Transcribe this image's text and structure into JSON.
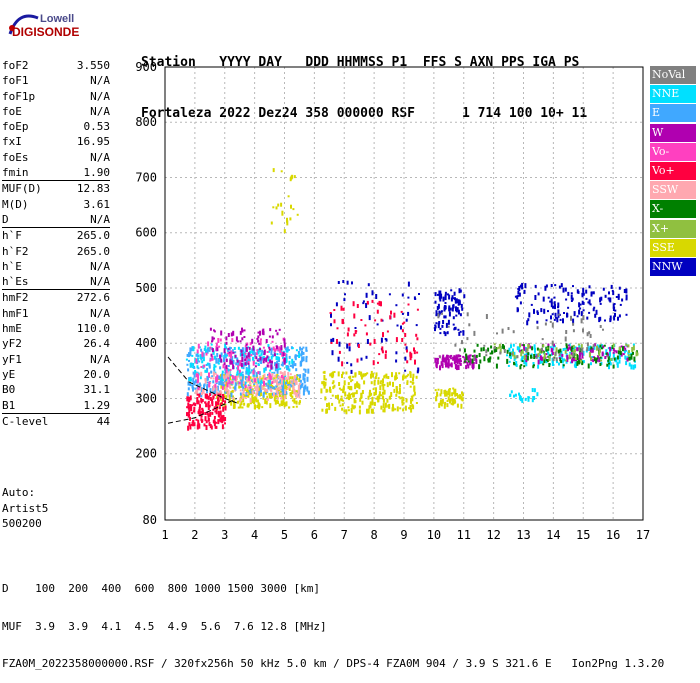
{
  "logo": {
    "line1": "Lowell",
    "line2": "DIGISONDE"
  },
  "header": {
    "labels": [
      "Station",
      "YYYY",
      "DAY",
      "DDD",
      "HHMMSS",
      "P1",
      "FFS",
      "S",
      "AXN",
      "PPS",
      "IGA",
      "PS"
    ],
    "values": [
      "Fortaleza",
      "2022",
      "Dez24",
      "358",
      "000000",
      "RSF",
      "",
      "1",
      "714",
      "100",
      "10+",
      "11"
    ]
  },
  "params": [
    {
      "name": "foF2",
      "value": "3.550"
    },
    {
      "name": "foF1",
      "value": "N/A"
    },
    {
      "name": "foF1p",
      "value": "N/A"
    },
    {
      "name": "foE",
      "value": "N/A"
    },
    {
      "name": "foEp",
      "value": "0.53"
    },
    {
      "name": "fxI",
      "value": "16.95"
    },
    {
      "name": "foEs",
      "value": "N/A"
    },
    {
      "name": "fmin",
      "value": "1.90"
    },
    {
      "name": "MUF(D)",
      "value": "12.83"
    },
    {
      "name": "M(D)",
      "value": "3.61"
    },
    {
      "name": "D",
      "value": "N/A"
    },
    {
      "name": "h`F",
      "value": "265.0"
    },
    {
      "name": "h`F2",
      "value": "265.0"
    },
    {
      "name": "h`E",
      "value": "N/A"
    },
    {
      "name": "h`Es",
      "value": "N/A"
    },
    {
      "name": "hmF2",
      "value": "272.6"
    },
    {
      "name": "hmF1",
      "value": "N/A"
    },
    {
      "name": "hmE",
      "value": "110.0"
    },
    {
      "name": "yF2",
      "value": "26.4"
    },
    {
      "name": "yF1",
      "value": "N/A"
    },
    {
      "name": "yE",
      "value": "20.0"
    },
    {
      "name": "B0",
      "value": "31.1"
    },
    {
      "name": "B1",
      "value": "1.29"
    },
    {
      "name": "C-level",
      "value": "44"
    }
  ],
  "auto": {
    "line1": "Auto:",
    "line2": "Artist5",
    "line3": "500200"
  },
  "legend": [
    {
      "label": "NoVal",
      "color": "#808080"
    },
    {
      "label": "NNE",
      "color": "#00e0ff"
    },
    {
      "label": "E",
      "color": "#40a8ff"
    },
    {
      "label": "W",
      "color": "#b000b0"
    },
    {
      "label": "Vo-",
      "color": "#ff40c0"
    },
    {
      "label": "Vo+",
      "color": "#ff0040"
    },
    {
      "label": "SSW",
      "color": "#ffa8b0"
    },
    {
      "label": "X-",
      "color": "#008000"
    },
    {
      "label": "X+",
      "color": "#90c040"
    },
    {
      "label": "SSE",
      "color": "#d8d800"
    },
    {
      "label": "NNW",
      "color": "#0000c0"
    }
  ],
  "footer": {
    "d_label": "D",
    "d_values": [
      "100",
      "200",
      "400",
      "600",
      "800",
      "1000",
      "1500",
      "3000"
    ],
    "d_unit": "[km]",
    "muf_label": "MUF",
    "muf_values": [
      "3.9",
      "3.9",
      "4.1",
      "4.5",
      "4.9",
      "5.6",
      "7.6",
      "12.8"
    ],
    "muf_unit": "[MHz]",
    "info": "FZA0M_2022358000000.RSF / 320fx256h 50 kHz 5.0 km / DPS-4 FZA0M 904 / 3.9 S 321.6 E   Ion2Png 1.3.20"
  },
  "chart_data": {
    "type": "scatter",
    "xlabel": "",
    "ylabel": "",
    "xlim": [
      1,
      17
    ],
    "ylim": [
      80,
      900
    ],
    "xticks": [
      1,
      2,
      3,
      4,
      5,
      6,
      7,
      8,
      9,
      10,
      11,
      12,
      13,
      14,
      15,
      16,
      17
    ],
    "yticks": [
      80,
      200,
      300,
      400,
      500,
      600,
      700,
      800,
      900
    ],
    "grid": true,
    "legend_position": "right",
    "clusters": [
      {
        "series": "SSE",
        "x": [
          2.7,
          5.5
        ],
        "y": [
          285,
          345
        ],
        "n": 260
      },
      {
        "series": "SSE",
        "x": [
          6.2,
          9.4
        ],
        "y": [
          280,
          350
        ],
        "n": 260
      },
      {
        "series": "SSE",
        "x": [
          10.0,
          11.0
        ],
        "y": [
          290,
          320
        ],
        "n": 60
      },
      {
        "series": "E",
        "x": [
          1.7,
          5.8
        ],
        "y": [
          310,
          395
        ],
        "n": 380
      },
      {
        "series": "NNE",
        "x": [
          1.7,
          5.5
        ],
        "y": [
          330,
          400
        ],
        "n": 120
      },
      {
        "series": "NNE",
        "x": [
          12.4,
          16.8
        ],
        "y": [
          360,
          400
        ],
        "n": 160
      },
      {
        "series": "SSW",
        "x": [
          2.0,
          5.5
        ],
        "y": [
          300,
          350
        ],
        "n": 150
      },
      {
        "series": "Vo+",
        "x": [
          1.7,
          3.0
        ],
        "y": [
          250,
          310
        ],
        "n": 150
      },
      {
        "series": "Vo-",
        "x": [
          2.0,
          5.0
        ],
        "y": [
          320,
          410
        ],
        "n": 100
      },
      {
        "series": "W",
        "x": [
          2.5,
          5.0
        ],
        "y": [
          360,
          430
        ],
        "n": 100
      },
      {
        "series": "W",
        "x": [
          10.0,
          11.4
        ],
        "y": [
          360,
          380
        ],
        "n": 90
      },
      {
        "series": "NNW",
        "x": [
          10.0,
          11.0
        ],
        "y": [
          420,
          500
        ],
        "n": 90
      },
      {
        "series": "NNW",
        "x": [
          12.7,
          16.5
        ],
        "y": [
          440,
          510
        ],
        "n": 140
      },
      {
        "series": "W",
        "x": [
          12.7,
          16.5
        ],
        "y": [
          370,
          400
        ],
        "n": 80
      },
      {
        "series": "X-",
        "x": [
          11.0,
          16.8
        ],
        "y": [
          360,
          400
        ],
        "n": 120
      },
      {
        "series": "X+",
        "x": [
          12.0,
          16.8
        ],
        "y": [
          370,
          400
        ],
        "n": 60
      },
      {
        "series": "NoVal",
        "x": [
          10.0,
          16.0
        ],
        "y": [
          370,
          460
        ],
        "n": 60
      },
      {
        "series": "NNW",
        "x": [
          6.5,
          9.5
        ],
        "y": [
          350,
          520
        ],
        "n": 60
      },
      {
        "series": "Vo+",
        "x": [
          6.5,
          9.5
        ],
        "y": [
          360,
          480
        ],
        "n": 70
      },
      {
        "series": "SSE",
        "x": [
          4.5,
          5.5
        ],
        "y": [
          600,
          720
        ],
        "n": 20
      },
      {
        "series": "NNE",
        "x": [
          12.5,
          13.5
        ],
        "y": [
          300,
          320
        ],
        "n": 20
      }
    ],
    "lines": [
      {
        "name": "extraordinary-trace",
        "points": [
          [
            1.1,
            375
          ],
          [
            1.8,
            330
          ],
          [
            3.0,
            300
          ],
          [
            3.4,
            292
          ]
        ]
      },
      {
        "name": "ordinary-trace",
        "points": [
          [
            1.1,
            255
          ],
          [
            2.0,
            265
          ],
          [
            3.0,
            290
          ],
          [
            3.4,
            300
          ]
        ]
      }
    ]
  }
}
